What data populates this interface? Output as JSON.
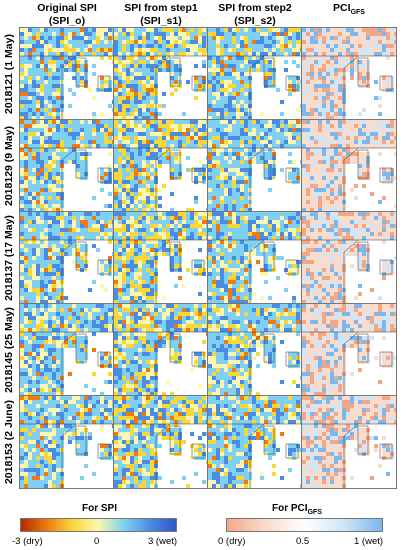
{
  "columns": [
    {
      "title": "Original SPI",
      "subtitle": "(SPI_o)"
    },
    {
      "title": "SPI from step1",
      "subtitle": "(SPI_s1)"
    },
    {
      "title": "SPI from step2",
      "subtitle": "(SPI_s2)"
    },
    {
      "title": "PCI",
      "subscript": "GFS",
      "subtitle": ""
    }
  ],
  "rows": [
    {
      "label": "2018121 (1 May)"
    },
    {
      "label": "2018129 (9 May)"
    },
    {
      "label": "2018137 (17 May)"
    },
    {
      "label": "2018145 (25 May)"
    },
    {
      "label": "2018153 (2 June)"
    }
  ],
  "legend_spi": {
    "title": "For SPI",
    "ticks": [
      "-3 (dry)",
      "0",
      "3 (wet)"
    ],
    "colors": [
      "#b22a00",
      "#f07a10",
      "#f8d838",
      "#fbf7b0",
      "#7fd0f2",
      "#4a8ce4",
      "#2e56cc"
    ]
  },
  "legend_pci": {
    "title": "For PCI",
    "subscript": "GFS",
    "ticks": [
      "0 (dry)",
      "0.5",
      "1 (wet)"
    ],
    "colors": [
      "#f2a888",
      "#f9dccb",
      "#ffffff",
      "#d0e6f8",
      "#7cb8ec"
    ]
  },
  "map_colors": {
    "sea": "#ffffff",
    "land_wet": "#7fc8ec",
    "land_dry": "#f4e47a",
    "pci_dry": "#f3c6ac",
    "pci_wet": "#9cc6ee",
    "border": "#333333"
  }
}
